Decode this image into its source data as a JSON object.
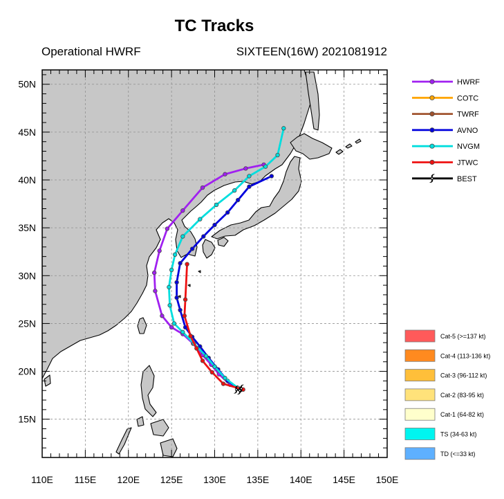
{
  "chart_data": {
    "type": "line",
    "title": "TC Tracks",
    "subtitle_left": "Operational HWRF",
    "subtitle_right": "SIXTEEN(16W) 2021081912",
    "xlim": [
      110,
      150
    ],
    "ylim": [
      11,
      51.5
    ],
    "x_ticks": [
      {
        "value": 110,
        "label": "110E"
      },
      {
        "value": 115,
        "label": "115E"
      },
      {
        "value": 120,
        "label": "120E"
      },
      {
        "value": 125,
        "label": "125E"
      },
      {
        "value": 130,
        "label": "130E"
      },
      {
        "value": 135,
        "label": "135E"
      },
      {
        "value": 140,
        "label": "140E"
      },
      {
        "value": 145,
        "label": "145E"
      },
      {
        "value": 150,
        "label": "150E"
      }
    ],
    "y_ticks": [
      {
        "value": 15,
        "label": "15N"
      },
      {
        "value": 20,
        "label": "20N"
      },
      {
        "value": 25,
        "label": "25N"
      },
      {
        "value": 30,
        "label": "30N"
      },
      {
        "value": 35,
        "label": "35N"
      },
      {
        "value": 40,
        "label": "40N"
      },
      {
        "value": 45,
        "label": "45N"
      },
      {
        "value": 50,
        "label": "50N"
      }
    ],
    "grid": true,
    "series": [
      {
        "name": "HWRF",
        "color": "#a020f0",
        "marker": "circle",
        "points": [
          [
            132.8,
            18.2
          ],
          [
            131.8,
            18.6
          ],
          [
            130.5,
            19.7
          ],
          [
            129.6,
            20.7
          ],
          [
            128.6,
            21.7
          ],
          [
            127.5,
            22.9
          ],
          [
            126.3,
            23.9
          ],
          [
            125.0,
            24.6
          ],
          [
            123.9,
            25.8
          ],
          [
            123.1,
            28.4
          ],
          [
            123.0,
            30.3
          ],
          [
            123.6,
            32.6
          ],
          [
            124.5,
            34.9
          ],
          [
            126.3,
            36.8
          ],
          [
            128.6,
            39.2
          ],
          [
            131.2,
            40.6
          ],
          [
            133.6,
            41.2
          ],
          [
            135.7,
            41.6
          ]
        ]
      },
      {
        "name": "COTC",
        "color": "#ffa500",
        "marker": "circle",
        "points": []
      },
      {
        "name": "TWRF",
        "color": "#a0522d",
        "marker": "circle",
        "points": []
      },
      {
        "name": "AVNO",
        "color": "#0000dd",
        "marker": "circle",
        "points": [
          [
            132.8,
            18.2
          ],
          [
            131.5,
            19.0
          ],
          [
            130.4,
            20.2
          ],
          [
            129.3,
            21.4
          ],
          [
            128.3,
            22.6
          ],
          [
            127.4,
            23.6
          ],
          [
            126.6,
            24.6
          ],
          [
            126.0,
            26.4
          ],
          [
            125.6,
            27.7
          ],
          [
            125.6,
            29.3
          ],
          [
            126.0,
            31.3
          ],
          [
            127.4,
            32.8
          ],
          [
            128.7,
            34.1
          ],
          [
            130.0,
            35.3
          ],
          [
            131.5,
            36.6
          ],
          [
            132.7,
            37.9
          ],
          [
            134.0,
            39.3
          ],
          [
            136.6,
            40.4
          ]
        ]
      },
      {
        "name": "NVGM",
        "color": "#00dede",
        "marker": "circle",
        "points": [
          [
            132.8,
            18.2
          ],
          [
            131.2,
            19.3
          ],
          [
            130.0,
            20.5
          ],
          [
            129.0,
            21.6
          ],
          [
            127.6,
            22.9
          ],
          [
            126.3,
            24.1
          ],
          [
            125.3,
            25.0
          ],
          [
            124.8,
            26.9
          ],
          [
            124.7,
            28.8
          ],
          [
            125.0,
            30.6
          ],
          [
            125.4,
            32.2
          ],
          [
            126.3,
            34.1
          ],
          [
            128.3,
            35.9
          ],
          [
            130.2,
            37.4
          ],
          [
            132.3,
            38.9
          ],
          [
            134.0,
            40.4
          ],
          [
            135.9,
            41.4
          ],
          [
            137.3,
            42.6
          ],
          [
            138.0,
            45.4
          ]
        ]
      },
      {
        "name": "JTWC",
        "color": "#ee1111",
        "marker": "circle",
        "points": [
          [
            133.3,
            18.1
          ],
          [
            131.0,
            18.7
          ],
          [
            129.7,
            19.9
          ],
          [
            128.6,
            21.1
          ],
          [
            127.9,
            22.4
          ],
          [
            127.2,
            23.7
          ],
          [
            126.5,
            25.8
          ],
          [
            126.6,
            27.5
          ],
          [
            126.8,
            31.2
          ]
        ]
      },
      {
        "name": "BEST",
        "color": "#000000",
        "marker": "cyclone",
        "points": [
          [
            133.1,
            18.2
          ],
          [
            132.9,
            18.0
          ],
          [
            132.5,
            18.1
          ]
        ]
      }
    ],
    "intensity_legend": [
      {
        "label": "Cat-5 (>=137 kt)",
        "color": "#ff5a5a"
      },
      {
        "label": "Cat-4 (113-136 kt)",
        "color": "#ff8a1f"
      },
      {
        "label": "Cat-3 (96-112 kt)",
        "color": "#ffbf3a"
      },
      {
        "label": "Cat-2 (83-95 kt)",
        "color": "#ffe27a"
      },
      {
        "label": "Cat-1 (64-82 kt)",
        "color": "#ffffcc"
      },
      {
        "label": "TS (34-63 kt)",
        "color": "#00f5f0"
      },
      {
        "label": "TD (<=33 kt)",
        "color": "#5eb0ff"
      }
    ],
    "colors": {
      "land": "#c7c7c7",
      "ocean": "#ffffff",
      "coast": "#000000",
      "grid": "#909090"
    }
  }
}
